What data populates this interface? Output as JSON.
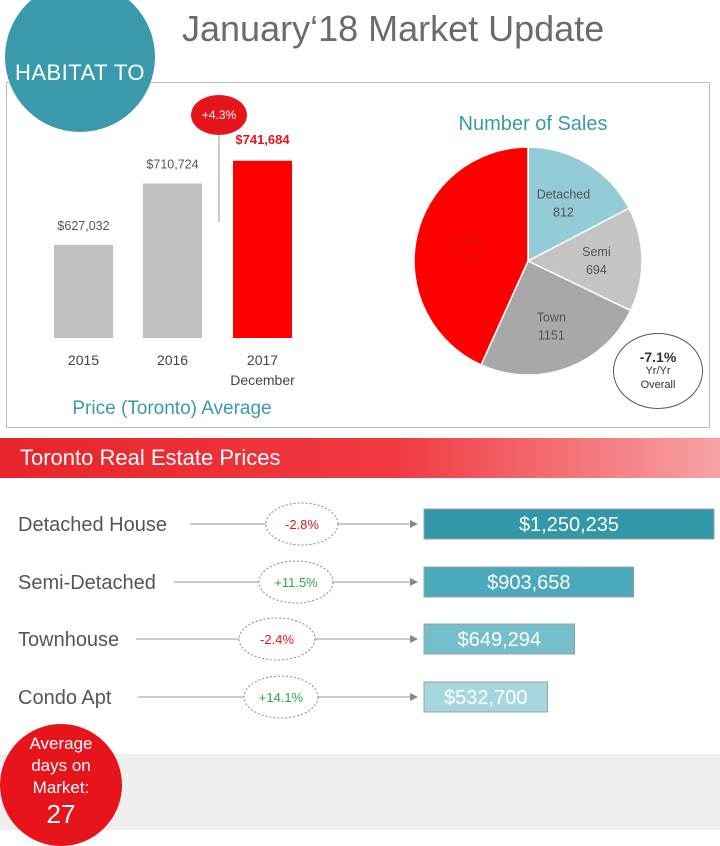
{
  "header": {
    "logo_text": "HABITAT TO",
    "title": "January‘18 Market Update"
  },
  "chart_data": [
    {
      "type": "bar",
      "title": "Price (Toronto) Average",
      "categories": [
        "2015",
        "2016",
        "2017\nDecember"
      ],
      "values": [
        627032,
        710724,
        741684
      ],
      "value_labels": [
        "$627,032",
        "$710,724",
        "$741,684"
      ],
      "highlight_index": 2,
      "annotation": "+4.3%",
      "colors": {
        "default": "#c0c0c0",
        "highlight": "#ff0000"
      }
    },
    {
      "type": "pie",
      "title": "Number of Sales",
      "slices": [
        {
          "label": "Detached",
          "value": 812,
          "color": "#93cbd6"
        },
        {
          "label": "Semi",
          "value": 694,
          "color": "#c4c4c4"
        },
        {
          "label": "Town",
          "value": 1151,
          "color": "#a8a8a8"
        },
        {
          "label": "Condo",
          "value": 2025,
          "color": "#ff0000"
        }
      ],
      "callout": {
        "value": "-7.1%",
        "line1": "Yr/Yr",
        "line2": "Overall"
      }
    },
    {
      "type": "bar",
      "orientation": "horizontal",
      "title": "Toronto Real Estate Prices",
      "categories": [
        "Detached House",
        "Semi-Detached",
        "Townhouse",
        "Condo Apt"
      ],
      "values": [
        1250235,
        903658,
        649294,
        532700
      ],
      "value_labels": [
        "$1,250,235",
        "$903,658",
        "$649,294",
        "$532,700"
      ],
      "changes": [
        "-2.8%",
        "+11.5%",
        "-2.4%",
        "+14.1%"
      ],
      "change_colors": [
        "#e8141b",
        "#2aa84a",
        "#e8141b",
        "#2aa84a"
      ],
      "bar_colors": [
        "#3298a8",
        "#4aa9ba",
        "#75bfcc",
        "#a6d6de"
      ]
    }
  ],
  "footer": {
    "days_label": "Average days on Market:",
    "days_value": "27"
  }
}
